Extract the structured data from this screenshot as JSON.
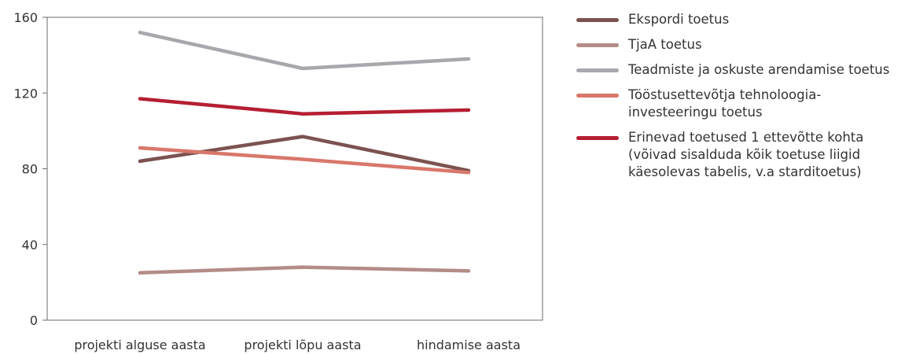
{
  "chart_data": {
    "type": "line",
    "categories": [
      "projekti alguse aasta",
      "projekti lõpu aasta",
      "hindamise aasta"
    ],
    "ylim": [
      0,
      160
    ],
    "yticks": [
      0,
      40,
      80,
      120,
      160
    ],
    "grid": false,
    "legend_position": "right",
    "series": [
      {
        "name": "Ekspordi toetus",
        "color": "#7b5351",
        "values": [
          84,
          97,
          79
        ]
      },
      {
        "name": "TjaA toetus",
        "color": "#b38c88",
        "values": [
          25,
          28,
          26
        ]
      },
      {
        "name": "Teadmiste ja oskuste arendamise toetus",
        "color": "#a8a7ac",
        "values": [
          152,
          133,
          138
        ]
      },
      {
        "name": "Tööstusettevõtja tehnoloogia-investeeringu toetus",
        "color": "#d9776a",
        "values": [
          91,
          85,
          78
        ]
      },
      {
        "name": "Erinevad toetused 1 ettevõtte kohta (võivad sisalduda kõik toetuse liigid käesolevas tabelis, v.a starditoetus)",
        "color": "#b51e32",
        "values": [
          117,
          109,
          111
        ]
      }
    ]
  }
}
